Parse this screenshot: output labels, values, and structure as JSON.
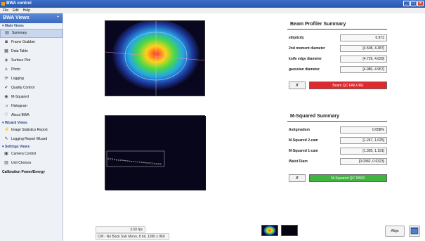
{
  "window": {
    "title": "BWA control"
  },
  "menu": [
    "File",
    "Edit",
    "Help"
  ],
  "sidebar": {
    "title": "BWA Views",
    "sections": {
      "main": "Main Views",
      "wizard": "Wizard Views",
      "settings": "Settings Views"
    },
    "main_items": [
      {
        "label": "Summary",
        "icon": "summary-icon",
        "glyph": "▤"
      },
      {
        "label": "Frame Grabber",
        "icon": "frame-grabber-icon",
        "glyph": "◙"
      },
      {
        "label": "Data Table",
        "icon": "data-table-icon",
        "glyph": "▦"
      },
      {
        "label": "Surface Plot",
        "icon": "surface-plot-icon",
        "glyph": "◈"
      },
      {
        "label": "Photo",
        "icon": "photo-icon",
        "glyph": "⋏"
      },
      {
        "label": "Logging",
        "icon": "logging-icon",
        "glyph": "⟳"
      },
      {
        "label": "Quality Control",
        "icon": "checkmark-icon",
        "glyph": "✔"
      },
      {
        "label": "M-Squared",
        "icon": "m-squared-icon",
        "glyph": "◉"
      },
      {
        "label": "Histogram",
        "icon": "histogram-icon",
        "glyph": "⩘"
      },
      {
        "label": "About BWA",
        "icon": "about-icon",
        "glyph": "♡"
      }
    ],
    "wizard_items": [
      {
        "label": "Image Statistics Report",
        "icon": "bolt-icon",
        "glyph": "⚡"
      },
      {
        "label": "Logging Report Wizard",
        "icon": "wand-icon",
        "glyph": "✎"
      }
    ],
    "settings_items": [
      {
        "label": "Camera Control",
        "icon": "camera-icon",
        "glyph": "▣"
      },
      {
        "label": "Unit Choices",
        "icon": "units-icon",
        "glyph": "▥"
      }
    ],
    "extra_item": "Calibration Power/Energy"
  },
  "beam_profiler": {
    "title": "Beam Profiler Summary",
    "rows": [
      {
        "label": "ellipticity",
        "value": "0.973"
      },
      {
        "label": "2nd moment diameter",
        "value": "[4.508, 4.387]"
      },
      {
        "label": "knife edge diameter",
        "value": "[4.729, 4.629]"
      },
      {
        "label": "gaussian diameter",
        "value": "[4.980, 4.957]"
      }
    ],
    "qc_button": "✗",
    "qc_status": "Beam QC FAILURE"
  },
  "m_squared": {
    "title": "M-Squared Summary",
    "rows": [
      {
        "label": "Astigmatism",
        "value": "0.058%"
      },
      {
        "label": "M-Squared 2-cam",
        "value": "[1.247, 1.025]"
      },
      {
        "label": "M-Squared 1-cam",
        "value": "[1.305, 1.191]"
      },
      {
        "label": "Waist Diam",
        "value": "[0.0382, 0.0323]"
      }
    ],
    "qc_button": "✗",
    "qc_status": "M-Squared QC PASS"
  },
  "status_bar": {
    "fps": "3.50 fps",
    "info": "CW - No Back Sub   Mono, 8 bit, 1280 x 960"
  },
  "buttons": {
    "align": "Align"
  },
  "colors": {
    "fail": "#e0292d",
    "pass": "#3fb43f",
    "accent": "#3a6ac0"
  }
}
